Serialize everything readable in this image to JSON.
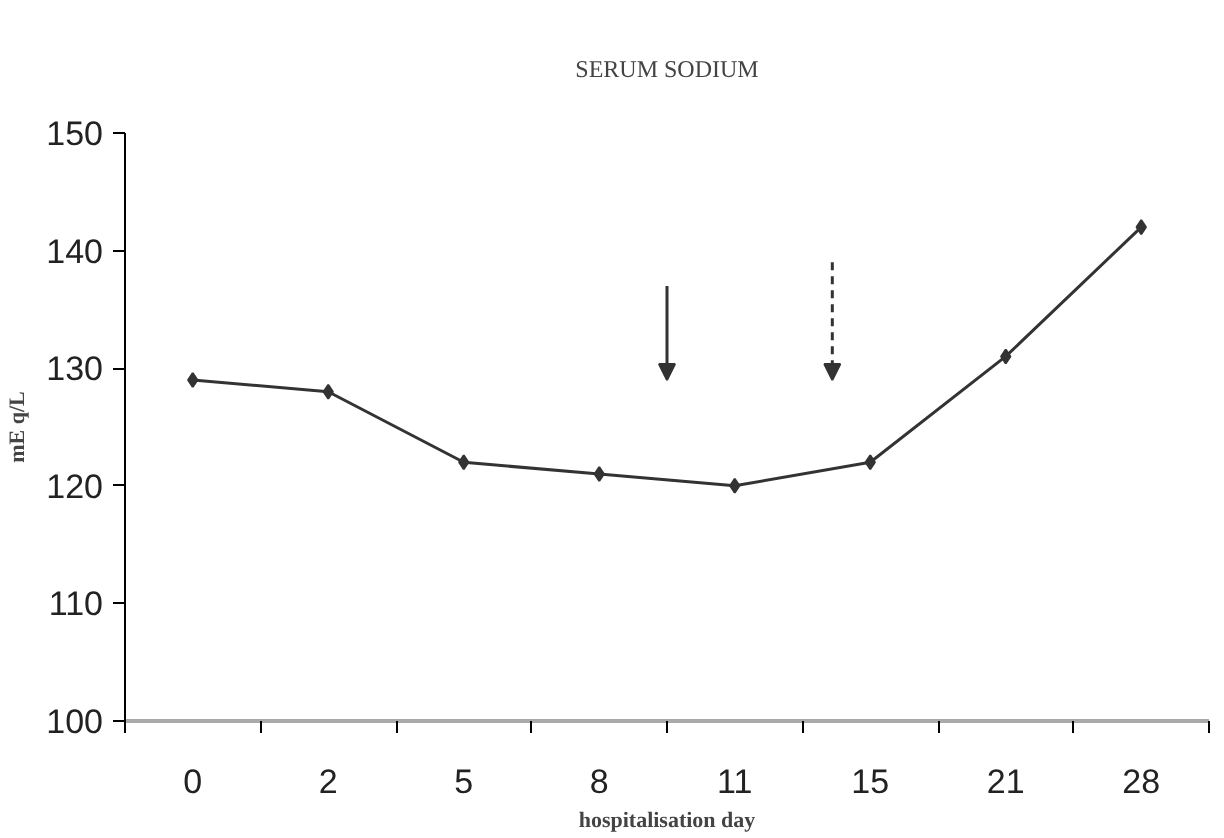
{
  "chart_data": {
    "type": "line",
    "title": "SERUM SODIUM",
    "xlabel": "hospitalisation day",
    "ylabel": "mE q/L",
    "categories": [
      "0",
      "2",
      "5",
      "8",
      "11",
      "15",
      "21",
      "28"
    ],
    "series": [
      {
        "color": "#333333",
        "values": [
          129,
          128,
          122,
          121,
          120,
          122,
          131,
          142
        ]
      }
    ],
    "ylim": [
      100,
      150
    ],
    "yticks": [
      100,
      110,
      120,
      130,
      140,
      150
    ],
    "grid": false,
    "marker": "diamond",
    "line_style": "solid"
  }
}
